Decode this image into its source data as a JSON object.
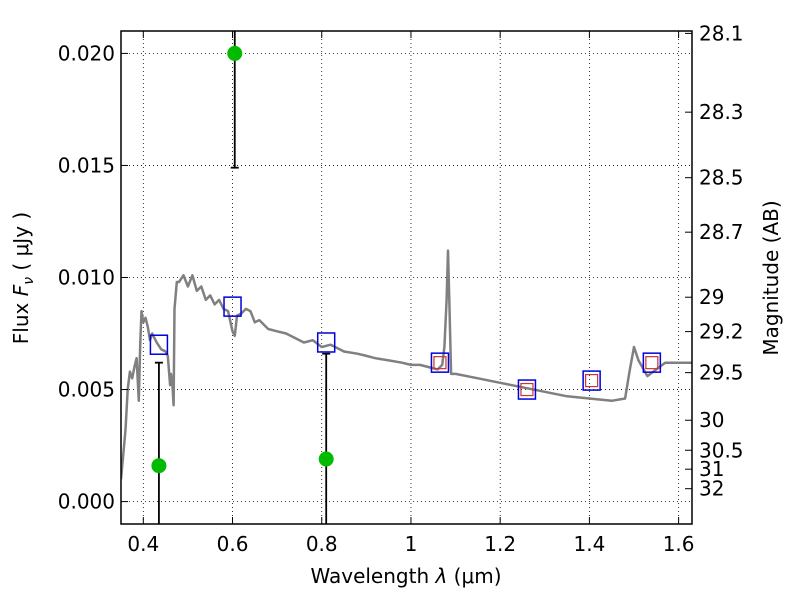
{
  "chart_data": {
    "type": "scatter",
    "xlabel": {
      "pre": "Wavelength  ",
      "sym": "λ",
      "unit": " (μm)"
    },
    "ylabel": {
      "pre": "Flux  ",
      "sym": "F",
      "sub": "ν",
      "unit": "  ( μJy )"
    },
    "y2label": "Magnitude (AB)",
    "xlim": [
      0.35,
      1.63
    ],
    "ylim": [
      -0.001,
      0.021
    ],
    "grid": true,
    "x_ticks": [
      0.4,
      0.6,
      0.8,
      1.0,
      1.2,
      1.4,
      1.6
    ],
    "x_tick_labels": [
      "0.4",
      "0.6",
      "0.8",
      "1",
      "1.2",
      "1.4",
      "1.6"
    ],
    "y_ticks": [
      0.0,
      0.005,
      0.01,
      0.015,
      0.02
    ],
    "y_tick_labels": [
      "0.000",
      "0.005",
      "0.010",
      "0.015",
      "0.020"
    ],
    "mag_ticks": [
      28.1,
      28.3,
      28.5,
      28.7,
      29,
      29.2,
      29.5,
      30,
      30.5,
      31,
      32
    ],
    "mag_tick_labels": [
      "28.1",
      "28.3",
      "28.5",
      "28.7",
      "29",
      "29.2",
      "29.5",
      "30",
      "30.5",
      "31",
      "32"
    ],
    "colors": {
      "sed": "#808080",
      "model": "#0000dd",
      "model_inner": "#cc3333",
      "observed": "#00bb00",
      "errorbar": "#000000"
    },
    "series": [
      {
        "type": "line",
        "x": [
          0.35,
          0.36,
          0.365,
          0.37,
          0.375,
          0.38,
          0.385,
          0.39,
          0.393,
          0.396,
          0.4,
          0.405,
          0.41,
          0.415,
          0.42,
          0.43,
          0.44,
          0.45,
          0.455,
          0.46,
          0.462,
          0.465,
          0.468,
          0.47,
          0.475,
          0.48,
          0.49,
          0.5,
          0.51,
          0.52,
          0.53,
          0.54,
          0.55,
          0.56,
          0.57,
          0.58,
          0.59,
          0.6,
          0.605,
          0.61,
          0.62,
          0.63,
          0.64,
          0.65,
          0.66,
          0.68,
          0.7,
          0.72,
          0.74,
          0.76,
          0.78,
          0.8,
          0.82,
          0.85,
          0.88,
          0.9,
          0.92,
          0.95,
          0.98,
          1.0,
          1.02,
          1.04,
          1.06,
          1.07,
          1.075,
          1.08,
          1.083,
          1.086,
          1.09,
          1.1,
          1.15,
          1.2,
          1.25,
          1.3,
          1.35,
          1.4,
          1.45,
          1.48,
          1.49,
          1.5,
          1.51,
          1.53,
          1.55,
          1.57,
          1.6,
          1.63
        ],
        "y": [
          0.001,
          0.0032,
          0.005,
          0.0058,
          0.0055,
          0.006,
          0.0064,
          0.0045,
          0.007,
          0.0085,
          0.008,
          0.0082,
          0.0078,
          0.0072,
          0.0075,
          0.0071,
          0.0068,
          0.0067,
          0.0065,
          0.0052,
          0.0057,
          0.0053,
          0.0043,
          0.0086,
          0.0098,
          0.0098,
          0.0101,
          0.0096,
          0.0101,
          0.0094,
          0.0096,
          0.009,
          0.0092,
          0.0088,
          0.009,
          0.0086,
          0.0085,
          0.0076,
          0.0074,
          0.0083,
          0.0084,
          0.0086,
          0.0085,
          0.008,
          0.0081,
          0.0077,
          0.0076,
          0.0075,
          0.0073,
          0.0071,
          0.0072,
          0.0069,
          0.007,
          0.0067,
          0.0066,
          0.0065,
          0.0064,
          0.0063,
          0.0062,
          0.0061,
          0.0061,
          0.006,
          0.0059,
          0.0061,
          0.0069,
          0.009,
          0.0112,
          0.009,
          0.0057,
          0.0057,
          0.0055,
          0.0053,
          0.0051,
          0.0049,
          0.0047,
          0.0046,
          0.0045,
          0.0046,
          0.0058,
          0.0069,
          0.0063,
          0.0056,
          0.0059,
          0.0062,
          0.0062,
          0.0062
        ]
      },
      {
        "type": "model_points",
        "x": [
          0.435,
          0.6,
          0.81,
          1.065,
          1.26,
          1.405,
          1.54
        ],
        "y": [
          0.007,
          0.0087,
          0.0071,
          0.0062,
          0.005,
          0.0054,
          0.0062
        ]
      },
      {
        "type": "observed_points",
        "x": [
          0.435,
          0.605,
          0.81
        ],
        "y": [
          0.0016,
          0.02,
          0.0019
        ],
        "err_low": [
          -0.002,
          0.0149,
          -0.002
        ],
        "err_high": [
          0.0062,
          0.0215,
          0.0066
        ]
      }
    ]
  }
}
